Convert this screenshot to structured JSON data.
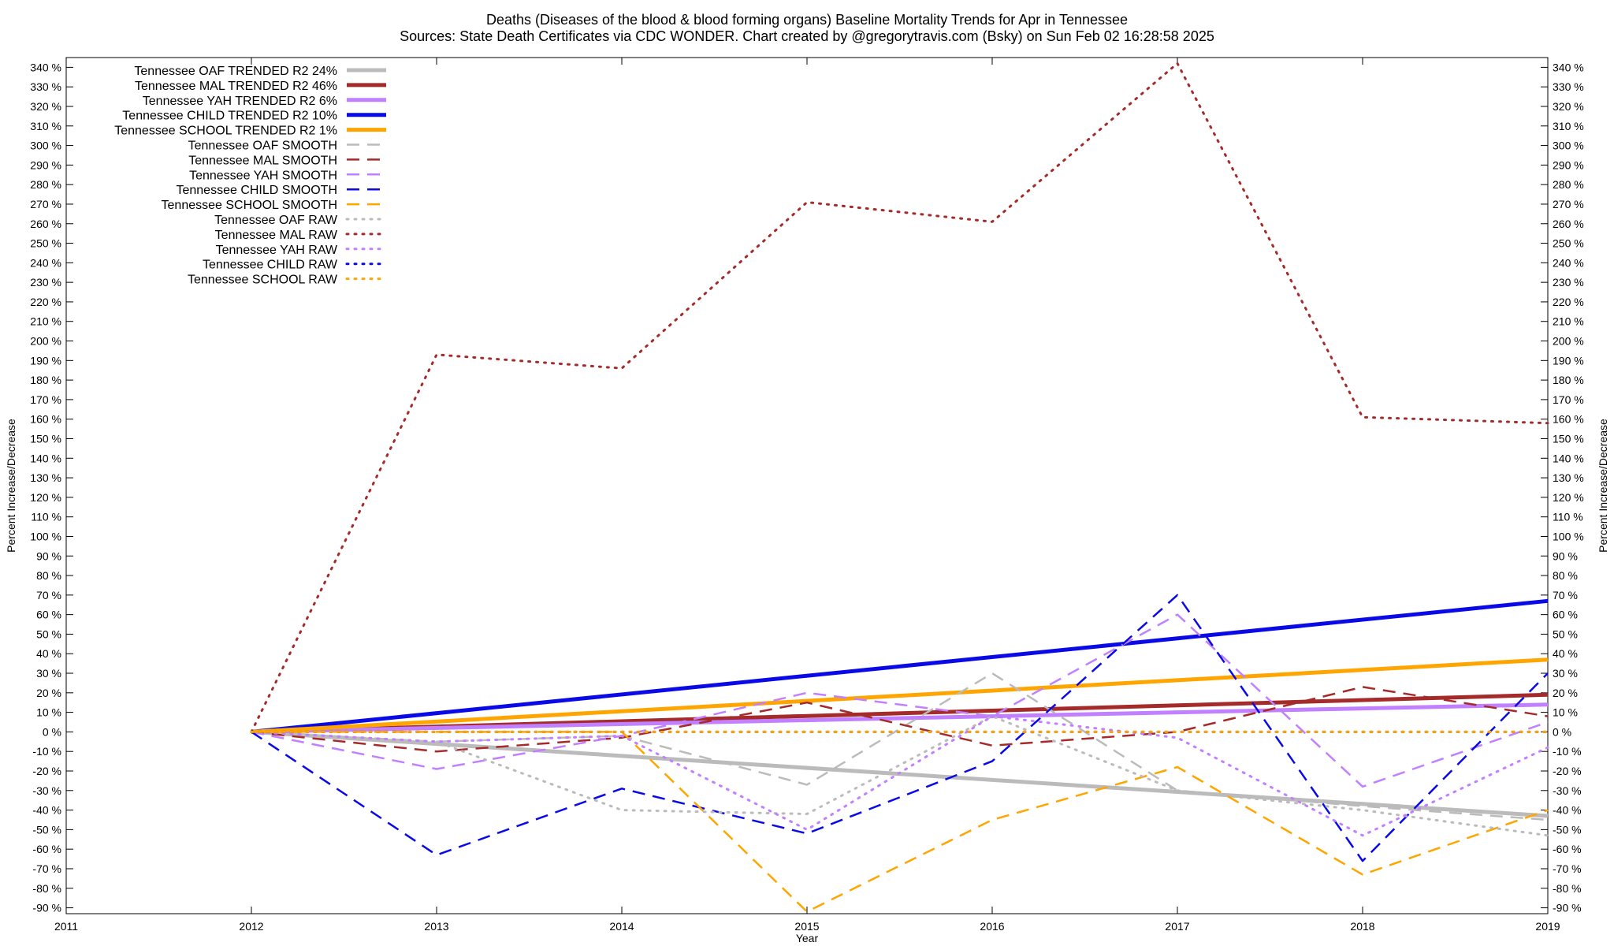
{
  "chart_data": {
    "type": "line",
    "title_line1": "Deaths (Diseases of the blood & blood forming organs)  Baseline Mortality Trends for Apr in Tennessee",
    "title_line2": "Sources: State Death Certificates via CDC WONDER.               Chart created by @gregorytravis.com (Bsky) on Sun Feb 02 16:28:58 2025",
    "xlabel": "Year",
    "ylabel_left": "Percent Increase/Decrease",
    "ylabel_right": "Percent Increase/Decrease",
    "xlim": [
      2011,
      2019
    ],
    "ylim": [
      -93,
      345
    ],
    "x_ticks": [
      "2011",
      "2012",
      "2013",
      "2014",
      "2015",
      "2016",
      "2017",
      "2018",
      "2019"
    ],
    "y_ticks": [
      -90,
      -80,
      -70,
      -60,
      -50,
      -40,
      -30,
      -20,
      -10,
      0,
      10,
      20,
      30,
      40,
      50,
      60,
      70,
      80,
      90,
      100,
      110,
      120,
      130,
      140,
      150,
      160,
      170,
      180,
      190,
      200,
      210,
      220,
      230,
      240,
      250,
      260,
      270,
      280,
      290,
      300,
      310,
      320,
      330,
      340
    ],
    "y_tick_suffix": " %",
    "grid": false,
    "legend_position": "top-left",
    "series": [
      {
        "name": "Tennessee OAF TRENDED R2  24%",
        "style": "solid",
        "color": "#bbbbbb",
        "width": 5,
        "x": [
          2012,
          2019
        ],
        "y": [
          0,
          -43
        ]
      },
      {
        "name": "Tennessee MAL TRENDED R2  46%",
        "style": "solid",
        "color": "#a52a2a",
        "width": 5,
        "x": [
          2012,
          2019
        ],
        "y": [
          0,
          19
        ]
      },
      {
        "name": "Tennessee YAH TRENDED R2   6%",
        "style": "solid",
        "color": "#c080ff",
        "width": 5,
        "x": [
          2012,
          2019
        ],
        "y": [
          0,
          14
        ]
      },
      {
        "name": "Tennessee CHILD TRENDED R2  10%",
        "style": "solid",
        "color": "#0a0ae6",
        "width": 5,
        "x": [
          2012,
          2019
        ],
        "y": [
          0,
          67
        ]
      },
      {
        "name": "Tennessee SCHOOL TRENDED R2   1%",
        "style": "solid",
        "color": "#ffa500",
        "width": 5,
        "x": [
          2012,
          2019
        ],
        "y": [
          0,
          37
        ]
      },
      {
        "name": "Tennessee OAF SMOOTH",
        "style": "dash",
        "color": "#bbbbbb",
        "width": 2.5,
        "x": [
          2012,
          2013,
          2014,
          2015,
          2016,
          2017,
          2018,
          2019
        ],
        "y": [
          0,
          -5,
          -2,
          -27,
          30,
          -30,
          -38,
          -45
        ]
      },
      {
        "name": "Tennessee MAL SMOOTH",
        "style": "dash",
        "color": "#a52a2a",
        "width": 2.5,
        "x": [
          2012,
          2013,
          2014,
          2015,
          2016,
          2017,
          2018,
          2019
        ],
        "y": [
          0,
          -10,
          -3,
          15,
          -7,
          0,
          23,
          8
        ]
      },
      {
        "name": "Tennessee YAH SMOOTH",
        "style": "dash",
        "color": "#c080ff",
        "width": 2.5,
        "x": [
          2012,
          2013,
          2014,
          2015,
          2016,
          2017,
          2018,
          2019
        ],
        "y": [
          0,
          -19,
          -2,
          20,
          8,
          60,
          -28,
          5
        ]
      },
      {
        "name": "Tennessee CHILD SMOOTH",
        "style": "dash",
        "color": "#0a0ae6",
        "width": 2.5,
        "x": [
          2012,
          2013,
          2014,
          2015,
          2016,
          2017,
          2018,
          2019
        ],
        "y": [
          0,
          -63,
          -29,
          -52,
          -15,
          70,
          -66,
          30
        ]
      },
      {
        "name": "Tennessee SCHOOL SMOOTH",
        "style": "dash",
        "color": "#ffa500",
        "width": 2.5,
        "x": [
          2012,
          2013,
          2014,
          2015,
          2016,
          2017,
          2018,
          2019
        ],
        "y": [
          0,
          0,
          0,
          -92,
          -45,
          -18,
          -73,
          -40
        ]
      },
      {
        "name": "Tennessee OAF RAW",
        "style": "dot",
        "color": "#bbbbbb",
        "width": 3,
        "x": [
          2012,
          2013,
          2014,
          2015,
          2016,
          2017,
          2018,
          2019
        ],
        "y": [
          0,
          -5,
          -40,
          -42,
          8,
          -30,
          -40,
          -53
        ]
      },
      {
        "name": "Tennessee MAL RAW",
        "style": "dot",
        "color": "#a52a2a",
        "width": 3,
        "x": [
          2012,
          2013,
          2014,
          2015,
          2016,
          2017,
          2018,
          2019
        ],
        "y": [
          0,
          193,
          186,
          271,
          261,
          342,
          161,
          158
        ]
      },
      {
        "name": "Tennessee YAH RAW",
        "style": "dot",
        "color": "#c080ff",
        "width": 3,
        "x": [
          2012,
          2013,
          2014,
          2015,
          2016,
          2017,
          2018,
          2019
        ],
        "y": [
          0,
          -5,
          -2,
          -50,
          8,
          -3,
          -53,
          -8
        ]
      },
      {
        "name": "Tennessee CHILD RAW",
        "style": "dot",
        "color": "#0a0ae6",
        "width": 3,
        "x": [
          2012,
          2013,
          2014,
          2015,
          2016,
          2017,
          2018,
          2019
        ],
        "y": [
          0,
          0,
          0,
          0,
          0,
          0,
          0,
          0
        ]
      },
      {
        "name": "Tennessee SCHOOL RAW",
        "style": "dot",
        "color": "#ffa500",
        "width": 3,
        "x": [
          2012,
          2013,
          2014,
          2015,
          2016,
          2017,
          2018,
          2019
        ],
        "y": [
          0,
          0,
          0,
          0,
          0,
          0,
          0,
          0
        ]
      }
    ]
  }
}
